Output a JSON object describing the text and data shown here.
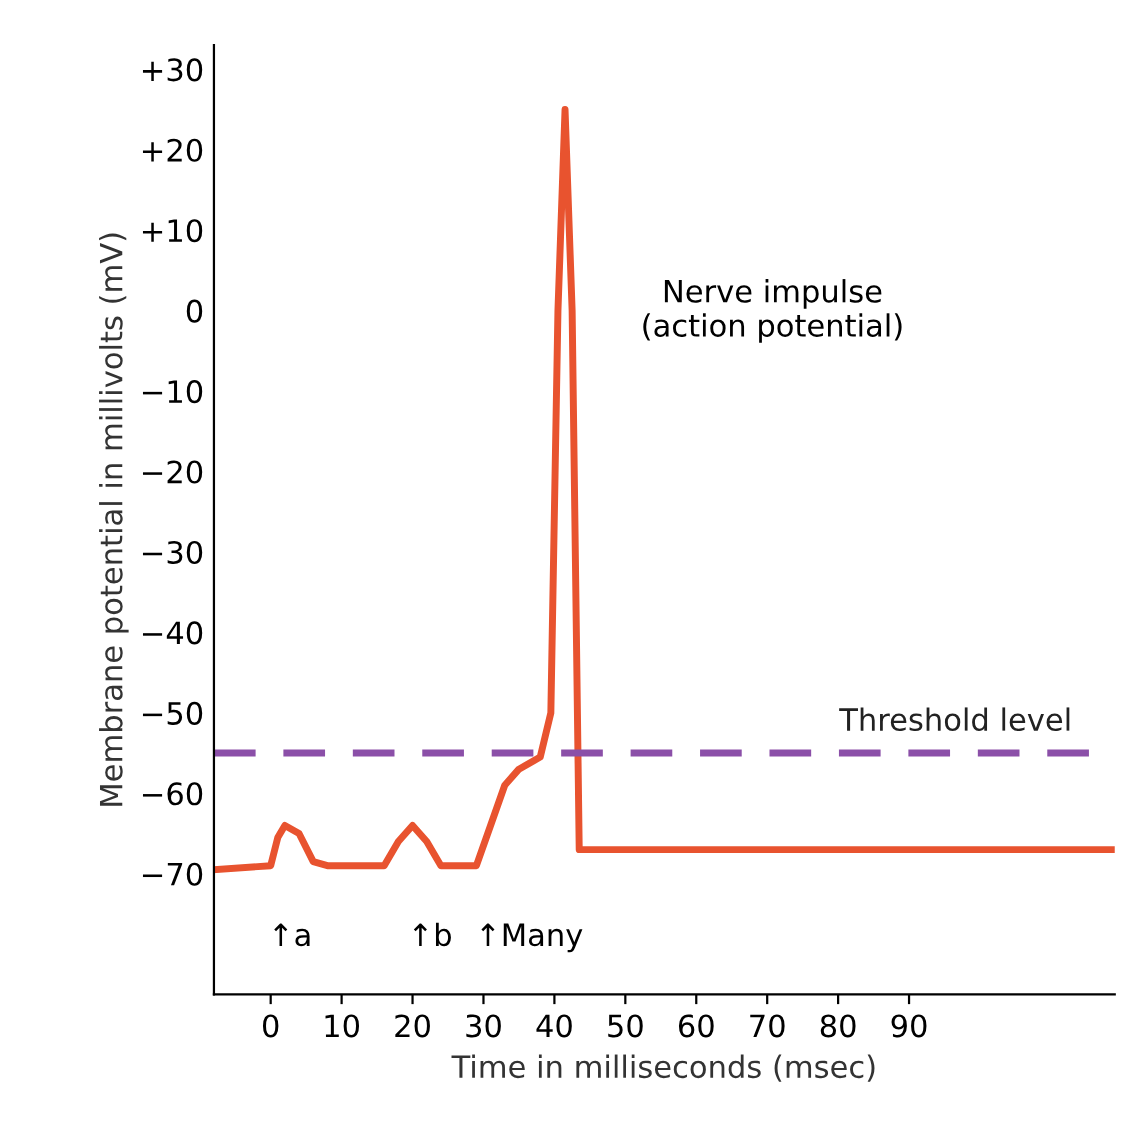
{
  "chart_data": {
    "type": "line",
    "xlabel": "Time in milliseconds (msec)",
    "ylabel": "Membrane potential in millivolts (mV)",
    "x": [
      -8,
      0,
      1,
      2,
      4,
      6,
      8,
      16,
      18,
      20,
      22,
      24,
      29,
      31,
      33,
      35,
      38,
      39.5,
      40.5,
      41.5,
      42.5,
      43.5,
      119
    ],
    "series": [
      {
        "color": "#e8532f",
        "values": [
          -69.5,
          -69,
          -65.5,
          -64,
          -65,
          -68.5,
          -69,
          -69,
          -66,
          -64,
          -66,
          -69,
          -69,
          -64,
          -59,
          -57,
          -55.5,
          -50,
          0,
          25,
          0,
          -67,
          -67
        ]
      }
    ],
    "xlim": [
      -8,
      119
    ],
    "ylim": [
      -85,
      33
    ],
    "xticks": [
      0,
      10,
      20,
      30,
      40,
      50,
      60,
      70,
      80,
      90
    ],
    "yticks": [
      {
        "value": 30,
        "label": "+30"
      },
      {
        "value": 20,
        "label": "+20"
      },
      {
        "value": 10,
        "label": "+10"
      },
      0,
      {
        "value": -10,
        "label": "−10"
      },
      {
        "value": -20,
        "label": "−20"
      },
      {
        "value": -30,
        "label": "−30"
      },
      {
        "value": -40,
        "label": "−40"
      },
      {
        "value": -50,
        "label": "−50"
      },
      {
        "value": -60,
        "label": "−60"
      },
      {
        "value": -70,
        "label": "−70"
      }
    ],
    "ref_lines": [
      {
        "axis": "y",
        "value": -55,
        "label": "Threshold level",
        "color": "#8b4fa8",
        "line_style": "dashed"
      }
    ],
    "annotations": [
      "↑a",
      "↑b",
      "↑Many",
      "Nerve impulse\n(action potential)"
    ],
    "grid": false,
    "marker": "none",
    "line_style": "solid"
  }
}
